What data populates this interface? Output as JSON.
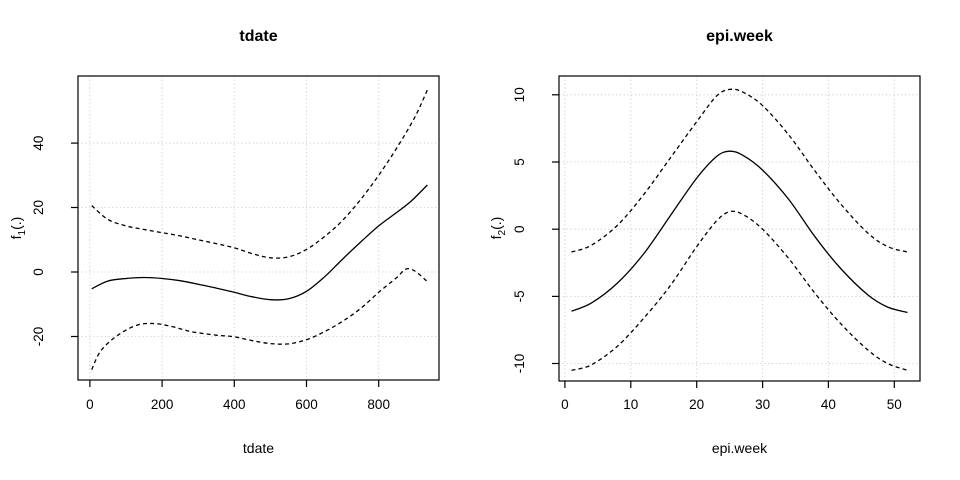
{
  "figure": {
    "background": "#ffffff",
    "foreground": "#000000",
    "grid_color": "#d3d3d3"
  },
  "chart_data": [
    {
      "type": "line",
      "title": "tdate",
      "xlabel": "tdate",
      "ylabel": "f1(.)",
      "ylabel_parts": {
        "base": "f",
        "sub": "1",
        "rest": "(.)"
      },
      "x_ticks": [
        0,
        200,
        400,
        600,
        800
      ],
      "y_ticks": [
        -20,
        0,
        20,
        40
      ],
      "xlim": [
        -33,
        967
      ],
      "ylim": [
        -33.5,
        60.8
      ],
      "grid": true,
      "legend": "none",
      "series": [
        {
          "name": "fit",
          "linetype": "solid",
          "color": "#000000",
          "points": [
            [
              5,
              -5.2
            ],
            [
              50,
              -2.8
            ],
            [
              100,
              -2.0
            ],
            [
              150,
              -1.7
            ],
            [
              200,
              -2.0
            ],
            [
              250,
              -2.7
            ],
            [
              300,
              -3.8
            ],
            [
              350,
              -5.0
            ],
            [
              400,
              -6.3
            ],
            [
              450,
              -7.7
            ],
            [
              500,
              -8.6
            ],
            [
              550,
              -8.3
            ],
            [
              600,
              -6.0
            ],
            [
              650,
              -1.5
            ],
            [
              700,
              4.0
            ],
            [
              750,
              9.3
            ],
            [
              800,
              14.3
            ],
            [
              850,
              18.5
            ],
            [
              890,
              22.0
            ],
            [
              935,
              27.0
            ]
          ]
        },
        {
          "name": "upper-ci",
          "linetype": "dashed",
          "color": "#000000",
          "points": [
            [
              5,
              20.6
            ],
            [
              50,
              16.3
            ],
            [
              100,
              14.3
            ],
            [
              150,
              13.2
            ],
            [
              200,
              12.2
            ],
            [
              250,
              11.2
            ],
            [
              300,
              10.0
            ],
            [
              350,
              8.8
            ],
            [
              400,
              7.5
            ],
            [
              450,
              5.7
            ],
            [
              500,
              4.4
            ],
            [
              550,
              4.7
            ],
            [
              600,
              7.0
            ],
            [
              650,
              11.0
            ],
            [
              700,
              16.0
            ],
            [
              750,
              22.5
            ],
            [
              800,
              30.0
            ],
            [
              850,
              38.5
            ],
            [
              900,
              48.0
            ],
            [
              935,
              56.5
            ]
          ]
        },
        {
          "name": "lower-ci",
          "linetype": "dashed",
          "color": "#000000",
          "points": [
            [
              5,
              -30.3
            ],
            [
              30,
              -24.5
            ],
            [
              75,
              -19.8
            ],
            [
              130,
              -16.5
            ],
            [
              180,
              -16.0
            ],
            [
              230,
              -17.0
            ],
            [
              280,
              -18.5
            ],
            [
              350,
              -19.6
            ],
            [
              400,
              -20.1
            ],
            [
              450,
              -21.3
            ],
            [
              500,
              -22.2
            ],
            [
              550,
              -22.3
            ],
            [
              600,
              -21.0
            ],
            [
              650,
              -18.5
            ],
            [
              700,
              -15.3
            ],
            [
              750,
              -11.3
            ],
            [
              800,
              -6.3
            ],
            [
              850,
              -1.7
            ],
            [
              875,
              0.9
            ],
            [
              900,
              0.3
            ],
            [
              935,
              -3.0
            ]
          ]
        }
      ]
    },
    {
      "type": "line",
      "title": "epi.week",
      "xlabel": "epi.week",
      "ylabel": "f2(.)",
      "ylabel_parts": {
        "base": "f",
        "sub": "2",
        "rest": "(.)"
      },
      "x_ticks": [
        0,
        10,
        20,
        30,
        40,
        50
      ],
      "y_ticks": [
        -10,
        -5,
        0,
        5,
        10
      ],
      "xlim": [
        -0.9,
        53.9
      ],
      "ylim": [
        -11.3,
        11.4
      ],
      "grid": true,
      "legend": "none",
      "series": [
        {
          "name": "fit",
          "linetype": "solid",
          "color": "#000000",
          "points": [
            [
              1,
              -6.1
            ],
            [
              4,
              -5.5
            ],
            [
              8,
              -4.0
            ],
            [
              12,
              -1.8
            ],
            [
              16,
              1.0
            ],
            [
              20,
              3.8
            ],
            [
              23,
              5.4
            ],
            [
              25,
              5.8
            ],
            [
              27,
              5.5
            ],
            [
              30,
              4.4
            ],
            [
              34,
              2.2
            ],
            [
              38,
              -0.6
            ],
            [
              42,
              -3.0
            ],
            [
              46,
              -4.9
            ],
            [
              49,
              -5.8
            ],
            [
              52,
              -6.2
            ]
          ]
        },
        {
          "name": "upper-ci",
          "linetype": "dashed",
          "color": "#000000",
          "points": [
            [
              1,
              -1.7
            ],
            [
              4,
              -1.2
            ],
            [
              8,
              0.3
            ],
            [
              12,
              2.6
            ],
            [
              16,
              5.3
            ],
            [
              20,
              8.0
            ],
            [
              23,
              9.9
            ],
            [
              25,
              10.4
            ],
            [
              27,
              10.2
            ],
            [
              30,
              9.2
            ],
            [
              34,
              7.0
            ],
            [
              38,
              4.3
            ],
            [
              42,
              1.8
            ],
            [
              46,
              -0.3
            ],
            [
              49,
              -1.3
            ],
            [
              52,
              -1.7
            ]
          ]
        },
        {
          "name": "lower-ci",
          "linetype": "dashed",
          "color": "#000000",
          "points": [
            [
              1,
              -10.5
            ],
            [
              4,
              -10.1
            ],
            [
              8,
              -8.7
            ],
            [
              12,
              -6.6
            ],
            [
              16,
              -4.2
            ],
            [
              20,
              -1.3
            ],
            [
              23,
              0.6
            ],
            [
              25,
              1.3
            ],
            [
              27,
              1.1
            ],
            [
              30,
              0.0
            ],
            [
              34,
              -2.2
            ],
            [
              38,
              -4.8
            ],
            [
              42,
              -7.1
            ],
            [
              46,
              -9.0
            ],
            [
              49,
              -10.0
            ],
            [
              52,
              -10.5
            ]
          ]
        }
      ]
    }
  ]
}
